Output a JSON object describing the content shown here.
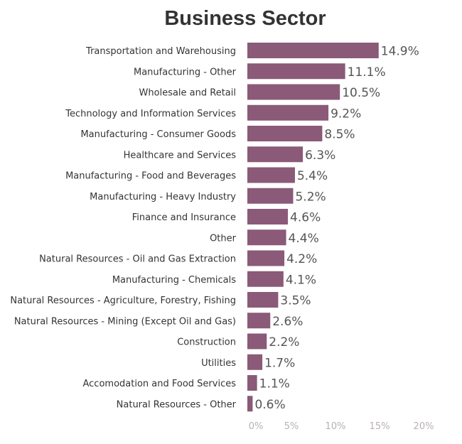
{
  "chart_data": {
    "type": "bar",
    "orientation": "horizontal",
    "title": "Business Sector",
    "categories": [
      "Transportation and Warehousing",
      "Manufacturing - Other",
      "Wholesale and Retail",
      "Technology and Information Services",
      "Manufacturing - Consumer Goods",
      "Healthcare and Services",
      "Manufacturing - Food and Beverages",
      "Manufacturing - Heavy Industry",
      "Finance and Insurance",
      "Other",
      "Natural Resources - Oil and Gas Extraction",
      "Manufacturing - Chemicals",
      "Natural Resources - Agriculture, Forestry, Fishing",
      "Natural Resources - Mining (Except Oil and Gas)",
      "Construction",
      "Utilities",
      "Accomodation and Food Services",
      "Natural Resources - Other"
    ],
    "values": [
      14.9,
      11.1,
      10.5,
      9.2,
      8.5,
      6.3,
      5.4,
      5.2,
      4.6,
      4.4,
      4.2,
      4.1,
      3.5,
      2.6,
      2.2,
      1.7,
      1.1,
      0.6
    ],
    "data_labels": [
      "14.9%",
      "11.1%",
      "10.5%",
      "9.2%",
      "8.5%",
      "6.3%",
      "5.4%",
      "5.2%",
      "4.6%",
      "4.4%",
      "4.2%",
      "4.1%",
      "3.5%",
      "2.6%",
      "2.2%",
      "1.7%",
      "1.1%",
      "0.6%"
    ],
    "xticks": [
      0,
      5,
      10,
      15,
      20
    ],
    "xtick_labels": [
      "0%",
      "5%",
      "10%",
      "15%",
      "20%"
    ],
    "xlim": [
      0,
      20
    ],
    "xlabel": "",
    "ylabel": "",
    "grid": false,
    "bar_color": "#8a5a78"
  }
}
